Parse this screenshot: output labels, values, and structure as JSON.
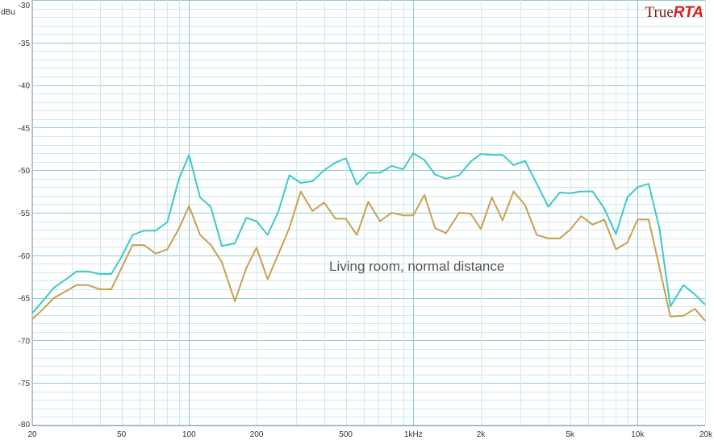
{
  "chart_data": {
    "type": "line",
    "x_scale": "log",
    "ylabel": "dBu",
    "ylim": [
      -80,
      -30
    ],
    "xlim": [
      20,
      20000
    ],
    "grid": true,
    "annotation": "Living room, normal distance",
    "brand": {
      "part1": "True",
      "part2": "RTA"
    },
    "y_ticks": [
      {
        "value": -30,
        "label": "-30"
      },
      {
        "value": -35,
        "label": "-35"
      },
      {
        "value": -40,
        "label": "-40"
      },
      {
        "value": -45,
        "label": "-45"
      },
      {
        "value": -50,
        "label": "-50"
      },
      {
        "value": -55,
        "label": "-55"
      },
      {
        "value": -60,
        "label": "-60"
      },
      {
        "value": -65,
        "label": "-65"
      },
      {
        "value": -70,
        "label": "-70"
      },
      {
        "value": -75,
        "label": "-75"
      },
      {
        "value": -80,
        "label": "-80"
      }
    ],
    "x_ticks": [
      {
        "value": 20,
        "label": "20"
      },
      {
        "value": 50,
        "label": "50"
      },
      {
        "value": 100,
        "label": "100"
      },
      {
        "value": 200,
        "label": "200"
      },
      {
        "value": 500,
        "label": "500"
      },
      {
        "value": 1000,
        "label": "1kHz"
      },
      {
        "value": 2000,
        "label": "2k"
      },
      {
        "value": 5000,
        "label": "5k"
      },
      {
        "value": 10000,
        "label": "10k"
      },
      {
        "value": 20000,
        "label": "20k"
      }
    ],
    "x": [
      20,
      22.4,
      25,
      28.3,
      31.5,
      35.5,
      40,
      45,
      50,
      56,
      63,
      71,
      80,
      90,
      100,
      112,
      125,
      140,
      160,
      180,
      200,
      224,
      250,
      280,
      315,
      355,
      400,
      450,
      500,
      560,
      630,
      710,
      800,
      900,
      1000,
      1120,
      1250,
      1400,
      1600,
      1800,
      2000,
      2240,
      2500,
      2800,
      3150,
      3550,
      4000,
      4500,
      5000,
      5600,
      6300,
      7100,
      8000,
      9000,
      10000,
      11200,
      12500,
      14000,
      16000,
      18000,
      20000
    ],
    "series": [
      {
        "color": "#40c8c8",
        "values": [
          -66.8,
          -65.3,
          -63.8,
          -62.8,
          -61.9,
          -61.9,
          -62.2,
          -62.2,
          -60.2,
          -57.6,
          -57.1,
          -57.1,
          -56.1,
          -51.1,
          -48.2,
          -53.2,
          -54.3,
          -58.9,
          -58.6,
          -55.6,
          -56.0,
          -57.6,
          -54.9,
          -50.6,
          -51.5,
          -51.3,
          -50.0,
          -49.1,
          -48.6,
          -51.7,
          -50.3,
          -50.3,
          -49.5,
          -49.9,
          -48.0,
          -48.8,
          -50.5,
          -51.0,
          -50.6,
          -49.0,
          -48.1,
          -48.2,
          -48.2,
          -49.4,
          -48.9,
          -51.6,
          -54.3,
          -52.6,
          -52.7,
          -52.5,
          -52.5,
          -54.5,
          -57.5,
          -53.2,
          -52.0,
          -51.6,
          -56.8,
          -66.0,
          -63.5,
          -64.6,
          -65.8
        ]
      },
      {
        "color": "#c8a050",
        "values": [
          -67.5,
          -66.3,
          -65.0,
          -64.2,
          -63.5,
          -63.5,
          -64.0,
          -64.0,
          -61.5,
          -58.8,
          -58.8,
          -59.8,
          -59.3,
          -56.9,
          -54.2,
          -57.6,
          -58.8,
          -60.8,
          -65.4,
          -61.5,
          -59.1,
          -62.8,
          -59.9,
          -56.8,
          -52.5,
          -54.8,
          -53.8,
          -55.7,
          -55.7,
          -57.6,
          -53.7,
          -56.0,
          -55.0,
          -55.3,
          -55.3,
          -52.9,
          -56.8,
          -57.4,
          -55.0,
          -55.1,
          -56.9,
          -53.2,
          -55.9,
          -52.5,
          -54.1,
          -57.6,
          -58.0,
          -58.0,
          -57.0,
          -55.4,
          -56.4,
          -55.8,
          -59.3,
          -58.5,
          -55.8,
          -55.8,
          -61.4,
          -67.2,
          -67.1,
          -66.3,
          -67.7
        ]
      }
    ]
  }
}
